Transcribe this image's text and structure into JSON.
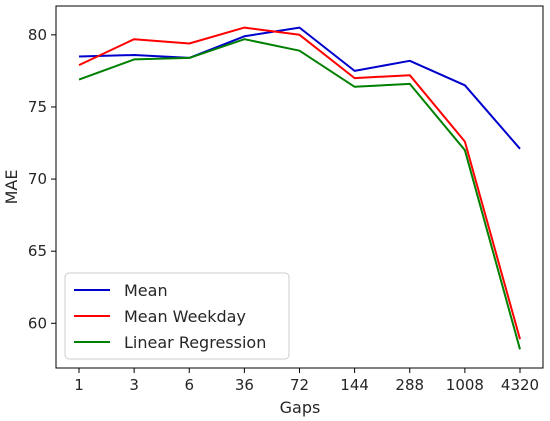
{
  "chart_data": {
    "type": "line",
    "title": "",
    "xlabel": "Gaps",
    "ylabel": "MAE",
    "categories": [
      "1",
      "3",
      "6",
      "36",
      "72",
      "144",
      "288",
      "1008",
      "4320"
    ],
    "ylim": [
      56.9,
      82.0
    ],
    "yticks": [
      60,
      65,
      70,
      75,
      80
    ],
    "grid": false,
    "legend_position": "lower-left",
    "series": [
      {
        "name": "Mean",
        "color": "#0000cc",
        "values": [
          78.5,
          78.6,
          78.4,
          79.9,
          80.5,
          77.5,
          78.2,
          76.5,
          72.1
        ]
      },
      {
        "name": "Mean Weekday",
        "color": "#ff0000",
        "values": [
          77.9,
          79.7,
          79.4,
          80.5,
          80.0,
          77.0,
          77.2,
          72.6,
          58.9
        ]
      },
      {
        "name": "Linear Regression",
        "color": "#008000",
        "values": [
          76.9,
          78.3,
          78.4,
          79.7,
          78.9,
          76.4,
          76.6,
          72.0,
          58.2
        ]
      }
    ]
  }
}
